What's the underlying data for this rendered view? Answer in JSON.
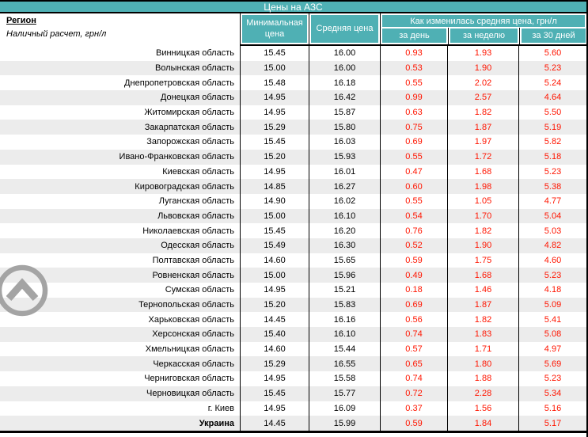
{
  "title": "Цены на АЗС",
  "header": {
    "region_label": "Регион",
    "region_sub": "Наличный расчет, грн/л",
    "col_min": "Минимальная цена",
    "col_avg": "Средняя цена",
    "col_change_group": "Как изменилась средняя цена, грн/л",
    "col_day": "за день",
    "col_week": "за неделю",
    "col_month": "за 30 дней"
  },
  "colors": {
    "header_teal": "#4fb0b4",
    "alt_row_gray": "#ececec",
    "change_value_red": "#ff1500",
    "scroll_icon_gray": "#a4a4a4",
    "border_black": "#000000"
  },
  "icons": {
    "scroll_to_top": "chevron-up-in-circle"
  },
  "rows": [
    {
      "region": "Винницкая область",
      "min": "15.45",
      "avg": "16.00",
      "day": "0.93",
      "week": "1.93",
      "month": "5.60"
    },
    {
      "region": "Волынская область",
      "min": "15.00",
      "avg": "16.00",
      "day": "0.53",
      "week": "1.90",
      "month": "5.23"
    },
    {
      "region": "Днепропетровская область",
      "min": "15.48",
      "avg": "16.18",
      "day": "0.55",
      "week": "2.02",
      "month": "5.24"
    },
    {
      "region": "Донецкая область",
      "min": "14.95",
      "avg": "16.42",
      "day": "0.99",
      "week": "2.57",
      "month": "4.64"
    },
    {
      "region": "Житомирская область",
      "min": "14.95",
      "avg": "15.87",
      "day": "0.63",
      "week": "1.82",
      "month": "5.50"
    },
    {
      "region": "Закарпатская область",
      "min": "15.29",
      "avg": "15.80",
      "day": "0.75",
      "week": "1.87",
      "month": "5.19"
    },
    {
      "region": "Запорожская область",
      "min": "15.45",
      "avg": "16.03",
      "day": "0.69",
      "week": "1.97",
      "month": "5.82"
    },
    {
      "region": "Ивано-Франковская область",
      "min": "15.20",
      "avg": "15.93",
      "day": "0.55",
      "week": "1.72",
      "month": "5.18"
    },
    {
      "region": "Киевская область",
      "min": "14.95",
      "avg": "16.01",
      "day": "0.47",
      "week": "1.68",
      "month": "5.23"
    },
    {
      "region": "Кировоградская область",
      "min": "14.85",
      "avg": "16.27",
      "day": "0.60",
      "week": "1.98",
      "month": "5.38"
    },
    {
      "region": "Луганская область",
      "min": "14.90",
      "avg": "16.02",
      "day": "0.55",
      "week": "1.05",
      "month": "4.77"
    },
    {
      "region": "Львовская область",
      "min": "15.00",
      "avg": "16.10",
      "day": "0.54",
      "week": "1.70",
      "month": "5.04"
    },
    {
      "region": "Николаевская область",
      "min": "15.45",
      "avg": "16.20",
      "day": "0.76",
      "week": "1.82",
      "month": "5.03"
    },
    {
      "region": "Одесская область",
      "min": "15.49",
      "avg": "16.30",
      "day": "0.52",
      "week": "1.90",
      "month": "4.82"
    },
    {
      "region": "Полтавская область",
      "min": "14.60",
      "avg": "15.65",
      "day": "0.59",
      "week": "1.75",
      "month": "4.60"
    },
    {
      "region": "Ровненская область",
      "min": "15.00",
      "avg": "15.96",
      "day": "0.49",
      "week": "1.68",
      "month": "5.23"
    },
    {
      "region": "Сумская область",
      "min": "14.95",
      "avg": "15.21",
      "day": "0.18",
      "week": "1.46",
      "month": "4.18"
    },
    {
      "region": "Тернопольская область",
      "min": "15.20",
      "avg": "15.83",
      "day": "0.69",
      "week": "1.87",
      "month": "5.09"
    },
    {
      "region": "Харьковская область",
      "min": "14.45",
      "avg": "16.16",
      "day": "0.56",
      "week": "1.82",
      "month": "5.41"
    },
    {
      "region": "Херсонская область",
      "min": "15.40",
      "avg": "16.10",
      "day": "0.74",
      "week": "1.83",
      "month": "5.08"
    },
    {
      "region": "Хмельницкая область",
      "min": "14.60",
      "avg": "15.44",
      "day": "0.57",
      "week": "1.71",
      "month": "4.97"
    },
    {
      "region": "Черкасская область",
      "min": "15.29",
      "avg": "16.55",
      "day": "0.65",
      "week": "1.80",
      "month": "5.69"
    },
    {
      "region": "Черниговская область",
      "min": "14.95",
      "avg": "15.58",
      "day": "0.74",
      "week": "1.88",
      "month": "5.23"
    },
    {
      "region": "Черновицкая область",
      "min": "15.45",
      "avg": "15.77",
      "day": "0.72",
      "week": "2.28",
      "month": "5.34"
    },
    {
      "region": "г. Киев",
      "min": "14.95",
      "avg": "16.09",
      "day": "0.37",
      "week": "1.56",
      "month": "5.16"
    },
    {
      "region": "Украина",
      "min": "14.45",
      "avg": "15.99",
      "day": "0.59",
      "week": "1.84",
      "month": "5.17",
      "is_total": true
    }
  ]
}
